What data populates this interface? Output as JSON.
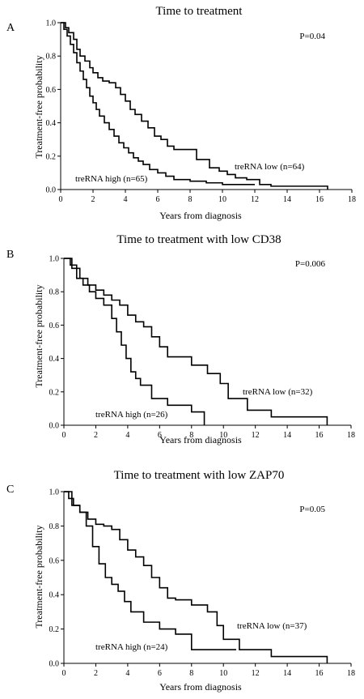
{
  "chart_data": [
    {
      "type": "line",
      "panel": "A",
      "title": "Time to treatment",
      "xlabel": "Years from diagnosis",
      "ylabel": "Treatment-free probability",
      "xlim": [
        0,
        18
      ],
      "ylim": [
        0,
        1.0
      ],
      "x_ticks": [
        "0",
        "2",
        "4",
        "6",
        "8",
        "10",
        "12",
        "14",
        "16",
        "18"
      ],
      "y_ticks": [
        "0.0",
        "0.2",
        "0.4",
        "0.6",
        "0.8",
        "1.0"
      ],
      "p_value": "P=0.04",
      "grid": false,
      "series": [
        {
          "annotation": "treRNA low (n=64)",
          "x": [
            0,
            0.3,
            0.5,
            0.8,
            1.0,
            1.2,
            1.5,
            1.8,
            2.0,
            2.3,
            2.6,
            3.0,
            3.4,
            3.7,
            4.0,
            4.3,
            4.6,
            5.0,
            5.4,
            5.8,
            6.2,
            6.6,
            7.0,
            7.8,
            8.4,
            9.2,
            9.8,
            10.3,
            10.8,
            11.5,
            12.3,
            13.0,
            16.5
          ],
          "y": [
            1.0,
            0.97,
            0.94,
            0.9,
            0.84,
            0.8,
            0.77,
            0.73,
            0.7,
            0.67,
            0.65,
            0.64,
            0.61,
            0.57,
            0.53,
            0.48,
            0.45,
            0.41,
            0.37,
            0.32,
            0.3,
            0.26,
            0.24,
            0.24,
            0.18,
            0.13,
            0.11,
            0.09,
            0.07,
            0.06,
            0.03,
            0.02,
            0.0
          ]
        },
        {
          "annotation": "treRNA high (n=65)",
          "x": [
            0,
            0.2,
            0.4,
            0.6,
            0.8,
            1.0,
            1.2,
            1.4,
            1.6,
            1.8,
            2.0,
            2.2,
            2.4,
            2.7,
            3.0,
            3.3,
            3.6,
            3.9,
            4.2,
            4.5,
            4.8,
            5.1,
            5.5,
            6.0,
            6.5,
            7.0,
            8.0,
            9.0,
            10.0,
            12.0
          ],
          "y": [
            1.0,
            0.96,
            0.92,
            0.87,
            0.82,
            0.76,
            0.71,
            0.66,
            0.61,
            0.56,
            0.52,
            0.48,
            0.44,
            0.4,
            0.36,
            0.32,
            0.28,
            0.25,
            0.22,
            0.19,
            0.17,
            0.15,
            0.12,
            0.1,
            0.08,
            0.06,
            0.05,
            0.04,
            0.03,
            0.03
          ]
        }
      ]
    },
    {
      "type": "line",
      "panel": "B",
      "title": "Time to treatment with low CD38",
      "xlabel": "Years from diagnosis",
      "ylabel": "Treatment-free probability",
      "xlim": [
        0,
        18
      ],
      "ylim": [
        0,
        1.0
      ],
      "x_ticks": [
        "0",
        "2",
        "4",
        "6",
        "8",
        "10",
        "12",
        "14",
        "16",
        "18"
      ],
      "y_ticks": [
        "0.0",
        "0.2",
        "0.4",
        "0.6",
        "0.8",
        "1.0"
      ],
      "p_value": "P=0.006",
      "grid": false,
      "series": [
        {
          "annotation": "treRNA low (n=32)",
          "x": [
            0,
            0.5,
            1.0,
            1.5,
            2.0,
            2.5,
            3.0,
            3.5,
            4.0,
            4.5,
            5.0,
            5.5,
            6.0,
            6.5,
            7.0,
            8.0,
            9.0,
            9.8,
            10.3,
            11.5,
            13.0,
            16.5
          ],
          "y": [
            1.0,
            0.94,
            0.88,
            0.84,
            0.81,
            0.78,
            0.75,
            0.72,
            0.66,
            0.62,
            0.59,
            0.53,
            0.47,
            0.41,
            0.41,
            0.36,
            0.31,
            0.25,
            0.16,
            0.09,
            0.05,
            0.0
          ]
        },
        {
          "annotation": "treRNA high (n=26)",
          "x": [
            0,
            0.4,
            0.8,
            1.2,
            1.6,
            2.0,
            2.5,
            3.0,
            3.3,
            3.6,
            3.9,
            4.2,
            4.5,
            4.8,
            5.5,
            6.5,
            8.0,
            8.8
          ],
          "y": [
            1.0,
            0.96,
            0.88,
            0.84,
            0.8,
            0.76,
            0.72,
            0.64,
            0.56,
            0.48,
            0.4,
            0.32,
            0.28,
            0.24,
            0.16,
            0.12,
            0.08,
            0.0
          ]
        }
      ]
    },
    {
      "type": "line",
      "panel": "C",
      "title": "Time to treatment with low ZAP70",
      "xlabel": "Years from diagnosis",
      "ylabel": "Treatment-free probability",
      "xlim": [
        0,
        18
      ],
      "ylim": [
        0,
        1.0
      ],
      "x_ticks": [
        "0",
        "2",
        "4",
        "6",
        "8",
        "10",
        "12",
        "14",
        "16",
        "18"
      ],
      "y_ticks": [
        "0.0",
        "0.2",
        "0.4",
        "0.6",
        "0.8",
        "1.0"
      ],
      "p_value": "P=0.05",
      "grid": false,
      "series": [
        {
          "annotation": "treRNA low (n=37)",
          "x": [
            0,
            0.5,
            1.0,
            1.5,
            2.0,
            2.5,
            3.0,
            3.5,
            4.0,
            4.5,
            5.0,
            5.5,
            6.0,
            6.5,
            7.0,
            8.0,
            9.0,
            9.6,
            10.0,
            11.0,
            13.0,
            16.5
          ],
          "y": [
            1.0,
            0.92,
            0.88,
            0.84,
            0.81,
            0.8,
            0.78,
            0.72,
            0.66,
            0.62,
            0.57,
            0.5,
            0.44,
            0.38,
            0.37,
            0.34,
            0.3,
            0.22,
            0.14,
            0.08,
            0.04,
            0.0
          ]
        },
        {
          "annotation": "treRNA high (n=24)",
          "x": [
            0,
            0.3,
            0.6,
            1.0,
            1.4,
            1.8,
            2.2,
            2.6,
            3.0,
            3.4,
            3.8,
            4.2,
            5.0,
            6.0,
            7.0,
            8.0,
            10.8
          ],
          "y": [
            1.0,
            0.96,
            0.92,
            0.88,
            0.8,
            0.68,
            0.58,
            0.5,
            0.46,
            0.42,
            0.36,
            0.3,
            0.24,
            0.2,
            0.17,
            0.08,
            0.08
          ]
        }
      ]
    }
  ]
}
